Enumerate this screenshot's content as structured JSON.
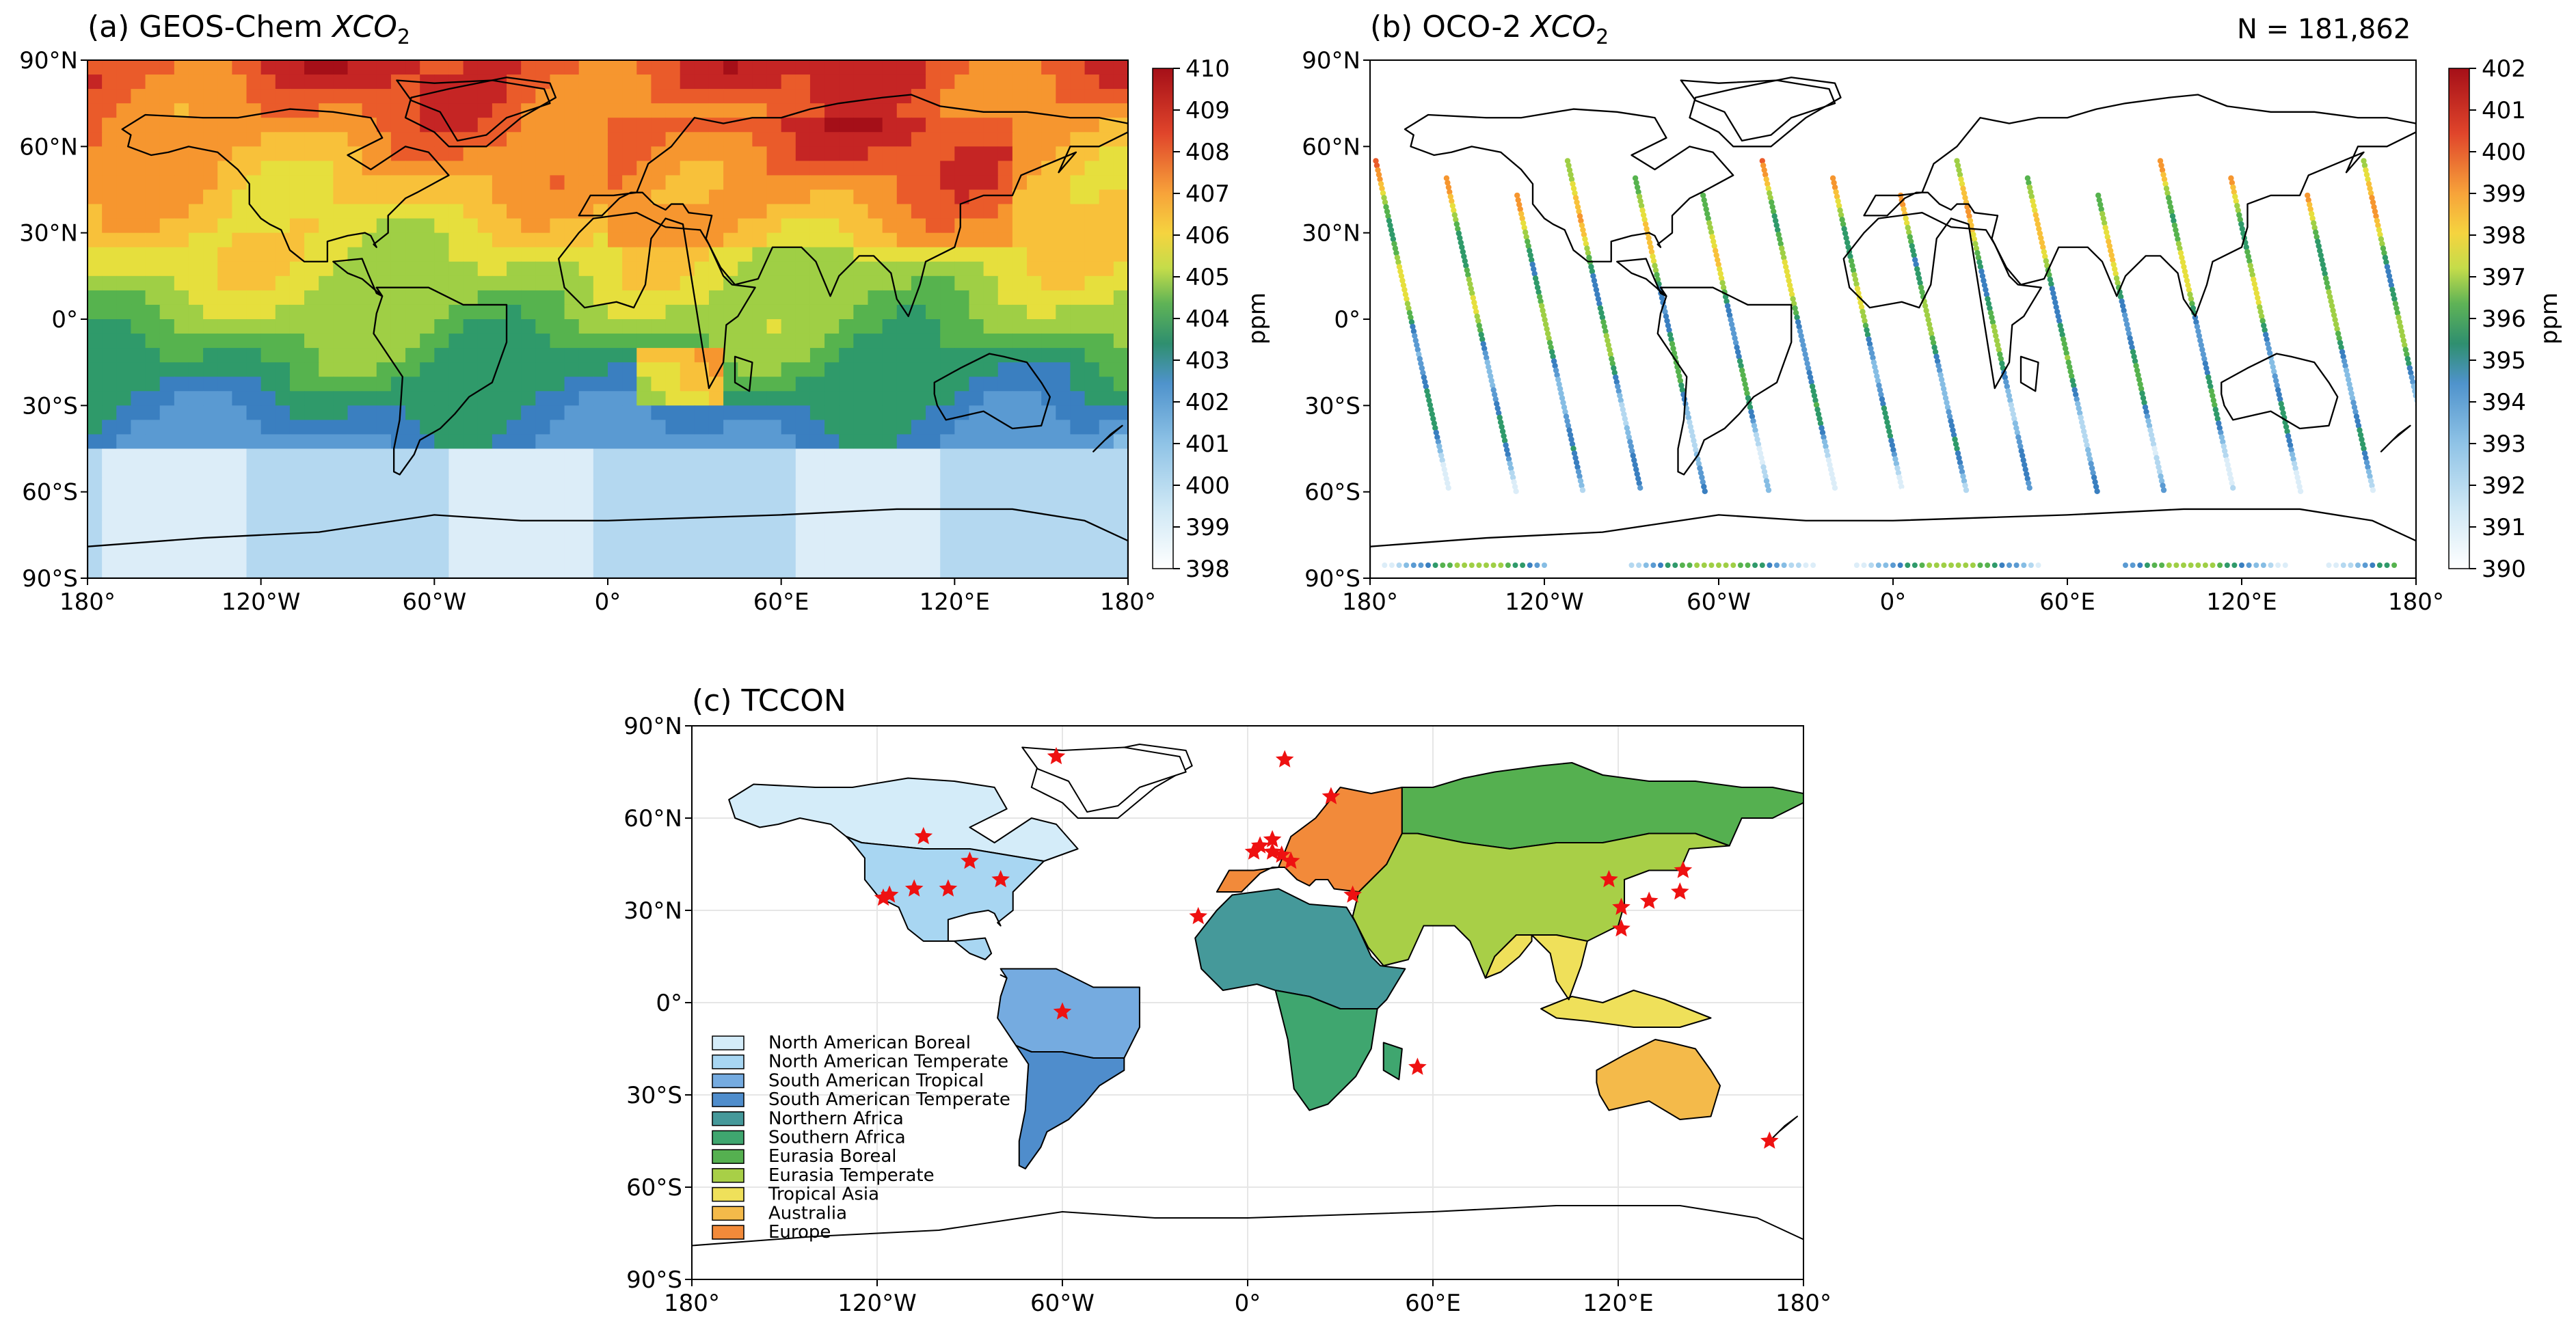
{
  "panels": {
    "a": {
      "title_prefix": "(a) GEOS-Chem ",
      "title_var": "XCO",
      "title_sub": "2",
      "colorbar": {
        "ticks": [
          "410",
          "409",
          "408",
          "407",
          "406",
          "405",
          "404",
          "403",
          "402",
          "401",
          "400",
          "399",
          "398"
        ],
        "unit": "ppm",
        "range": [
          398,
          410
        ]
      }
    },
    "b": {
      "title_prefix": "(b) OCO-2 ",
      "title_var": "XCO",
      "title_sub": "2",
      "count_label": "N = 181,862",
      "colorbar": {
        "ticks": [
          "402",
          "401",
          "400",
          "399",
          "398",
          "397",
          "396",
          "395",
          "394",
          "393",
          "392",
          "391",
          "390"
        ],
        "unit": "ppm",
        "range": [
          390,
          402
        ]
      }
    },
    "c": {
      "title": "(c) TCCON",
      "legend": [
        {
          "label": "North American Boreal",
          "color": "#d4ecf9"
        },
        {
          "label": "North American Temperate",
          "color": "#a8d6f2"
        },
        {
          "label": "South American Tropical",
          "color": "#75abe0"
        },
        {
          "label": "South American Temperate",
          "color": "#4f8dcc"
        },
        {
          "label": "Northern Africa",
          "color": "#45999a"
        },
        {
          "label": "Southern Africa",
          "color": "#3fa66f"
        },
        {
          "label": "Eurasia Boreal",
          "color": "#55b050"
        },
        {
          "label": "Eurasia Temperate",
          "color": "#a8cf47"
        },
        {
          "label": "Tropical Asia",
          "color": "#efe05a"
        },
        {
          "label": "Australia",
          "color": "#f4ba4a"
        },
        {
          "label": "Europe",
          "color": "#f28a3a"
        }
      ],
      "stations": [
        {
          "lon": -62,
          "lat": 80
        },
        {
          "lon": 12,
          "lat": 79
        },
        {
          "lon": 27,
          "lat": 67
        },
        {
          "lon": -105,
          "lat": 54
        },
        {
          "lon": -90,
          "lat": 46
        },
        {
          "lon": -80,
          "lat": 40
        },
        {
          "lon": -97,
          "lat": 37
        },
        {
          "lon": -108,
          "lat": 37
        },
        {
          "lon": -118,
          "lat": 34
        },
        {
          "lon": -116,
          "lat": 35
        },
        {
          "lon": -16,
          "lat": 28
        },
        {
          "lon": 2,
          "lat": 49
        },
        {
          "lon": 8,
          "lat": 49
        },
        {
          "lon": 11,
          "lat": 48
        },
        {
          "lon": 8,
          "lat": 53
        },
        {
          "lon": 4,
          "lat": 51
        },
        {
          "lon": 14,
          "lat": 46
        },
        {
          "lon": 34,
          "lat": 35
        },
        {
          "lon": 55,
          "lat": -21
        },
        {
          "lon": 117,
          "lat": 40
        },
        {
          "lon": 121,
          "lat": 31
        },
        {
          "lon": 121,
          "lat": 24
        },
        {
          "lon": 130,
          "lat": 33
        },
        {
          "lon": 140,
          "lat": 36
        },
        {
          "lon": 141,
          "lat": 43
        },
        {
          "lon": 169,
          "lat": -45
        },
        {
          "lon": -60,
          "lat": -3
        }
      ]
    }
  },
  "axes": {
    "lat_ticks": [
      "90°N",
      "60°N",
      "30°N",
      "0°",
      "30°S",
      "60°S",
      "90°S"
    ],
    "lon_ticks": [
      "180°",
      "120°W",
      "60°W",
      "0°",
      "60°E",
      "120°E",
      "180°"
    ]
  },
  "colors": {
    "ocean_a": "#cfe9f7",
    "station_marker": "#ee1111",
    "outline": "#000000"
  }
}
